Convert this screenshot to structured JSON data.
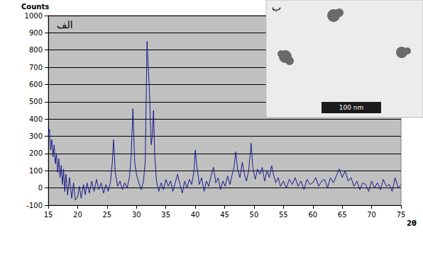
{
  "chart_data": {
    "type": "line",
    "ylabel": "Counts",
    "xlabel": "2θ",
    "annotations": [
      {
        "text": "الف"
      }
    ],
    "inset": {
      "label": "ب",
      "scale_bar": "100 nm"
    },
    "xlim": [
      15,
      75
    ],
    "xticks": [
      15,
      20,
      25,
      30,
      35,
      40,
      45,
      50,
      55,
      60,
      65,
      70,
      75
    ],
    "ylim": [
      -100,
      1000
    ],
    "yticks": [
      -100,
      0,
      100,
      200,
      300,
      400,
      500,
      600,
      700,
      800,
      900,
      1000
    ],
    "grid": true,
    "color": "#1a1a8c",
    "x": [
      15,
      15.2,
      15.4,
      15.6,
      15.8,
      16,
      16.2,
      16.4,
      16.6,
      16.8,
      17,
      17.2,
      17.4,
      17.6,
      17.8,
      18,
      18.3,
      18.6,
      19,
      19.3,
      19.6,
      20,
      20.3,
      20.6,
      21,
      21.3,
      21.6,
      22,
      22.4,
      22.8,
      23.2,
      23.6,
      24,
      24.4,
      24.8,
      25.2,
      25.6,
      25.9,
      26.1,
      26.4,
      26.8,
      27.2,
      27.6,
      28,
      28.4,
      28.8,
      29.1,
      29.4,
      29.7,
      30,
      30.4,
      30.8,
      31.2,
      31.5,
      31.8,
      32,
      32.2,
      32.5,
      32.7,
      32.9,
      33.1,
      33.4,
      33.8,
      34.2,
      34.6,
      35,
      35.4,
      35.8,
      36.2,
      36.6,
      37,
      37.4,
      37.8,
      38.2,
      38.6,
      39,
      39.4,
      39.8,
      40,
      40.3,
      40.7,
      41.1,
      41.5,
      41.9,
      42.3,
      42.7,
      43.1,
      43.5,
      43.9,
      44.3,
      44.7,
      45.1,
      45.5,
      45.9,
      46.3,
      46.6,
      46.9,
      47.2,
      47.6,
      48,
      48.3,
      48.7,
      49.1,
      49.5,
      49.8,
      50.2,
      50.6,
      51,
      51.4,
      51.8,
      52.2,
      52.6,
      53,
      53.3,
      53.7,
      54.1,
      54.5,
      55,
      55.5,
      56,
      56.5,
      57,
      57.5,
      58,
      58.5,
      59,
      59.5,
      60,
      60.5,
      61,
      61.5,
      62,
      62.5,
      63,
      63.5,
      64,
      64.5,
      65,
      65.5,
      66,
      66.5,
      67,
      67.5,
      68,
      68.5,
      69,
      69.5,
      70,
      70.5,
      71,
      71.5,
      72,
      72.5,
      73,
      73.5,
      74,
      74.5,
      75
    ],
    "values": [
      300,
      340,
      220,
      280,
      180,
      250,
      140,
      200,
      90,
      170,
      60,
      130,
      20,
      110,
      -20,
      80,
      -40,
      60,
      -60,
      30,
      -70,
      -50,
      10,
      -60,
      20,
      -40,
      30,
      -30,
      40,
      -20,
      50,
      -10,
      30,
      -30,
      20,
      -20,
      40,
      150,
      280,
      90,
      10,
      40,
      -10,
      30,
      0,
      60,
      180,
      460,
      150,
      80,
      30,
      -10,
      40,
      160,
      850,
      700,
      580,
      250,
      300,
      450,
      200,
      40,
      -20,
      30,
      -10,
      50,
      10,
      40,
      -20,
      30,
      80,
      20,
      -30,
      40,
      0,
      50,
      20,
      100,
      220,
      120,
      20,
      60,
      -20,
      40,
      10,
      70,
      120,
      30,
      60,
      -10,
      40,
      10,
      70,
      20,
      80,
      120,
      210,
      110,
      60,
      150,
      90,
      40,
      100,
      260,
      120,
      50,
      110,
      80,
      120,
      40,
      100,
      60,
      130,
      80,
      30,
      60,
      10,
      40,
      0,
      50,
      20,
      60,
      10,
      40,
      -10,
      50,
      20,
      30,
      60,
      10,
      40,
      50,
      0,
      60,
      30,
      70,
      110,
      60,
      100,
      40,
      60,
      10,
      40,
      -10,
      30,
      20,
      -20,
      40,
      0,
      30,
      -10,
      50,
      10,
      20,
      -20,
      60,
      0,
      20
    ]
  }
}
